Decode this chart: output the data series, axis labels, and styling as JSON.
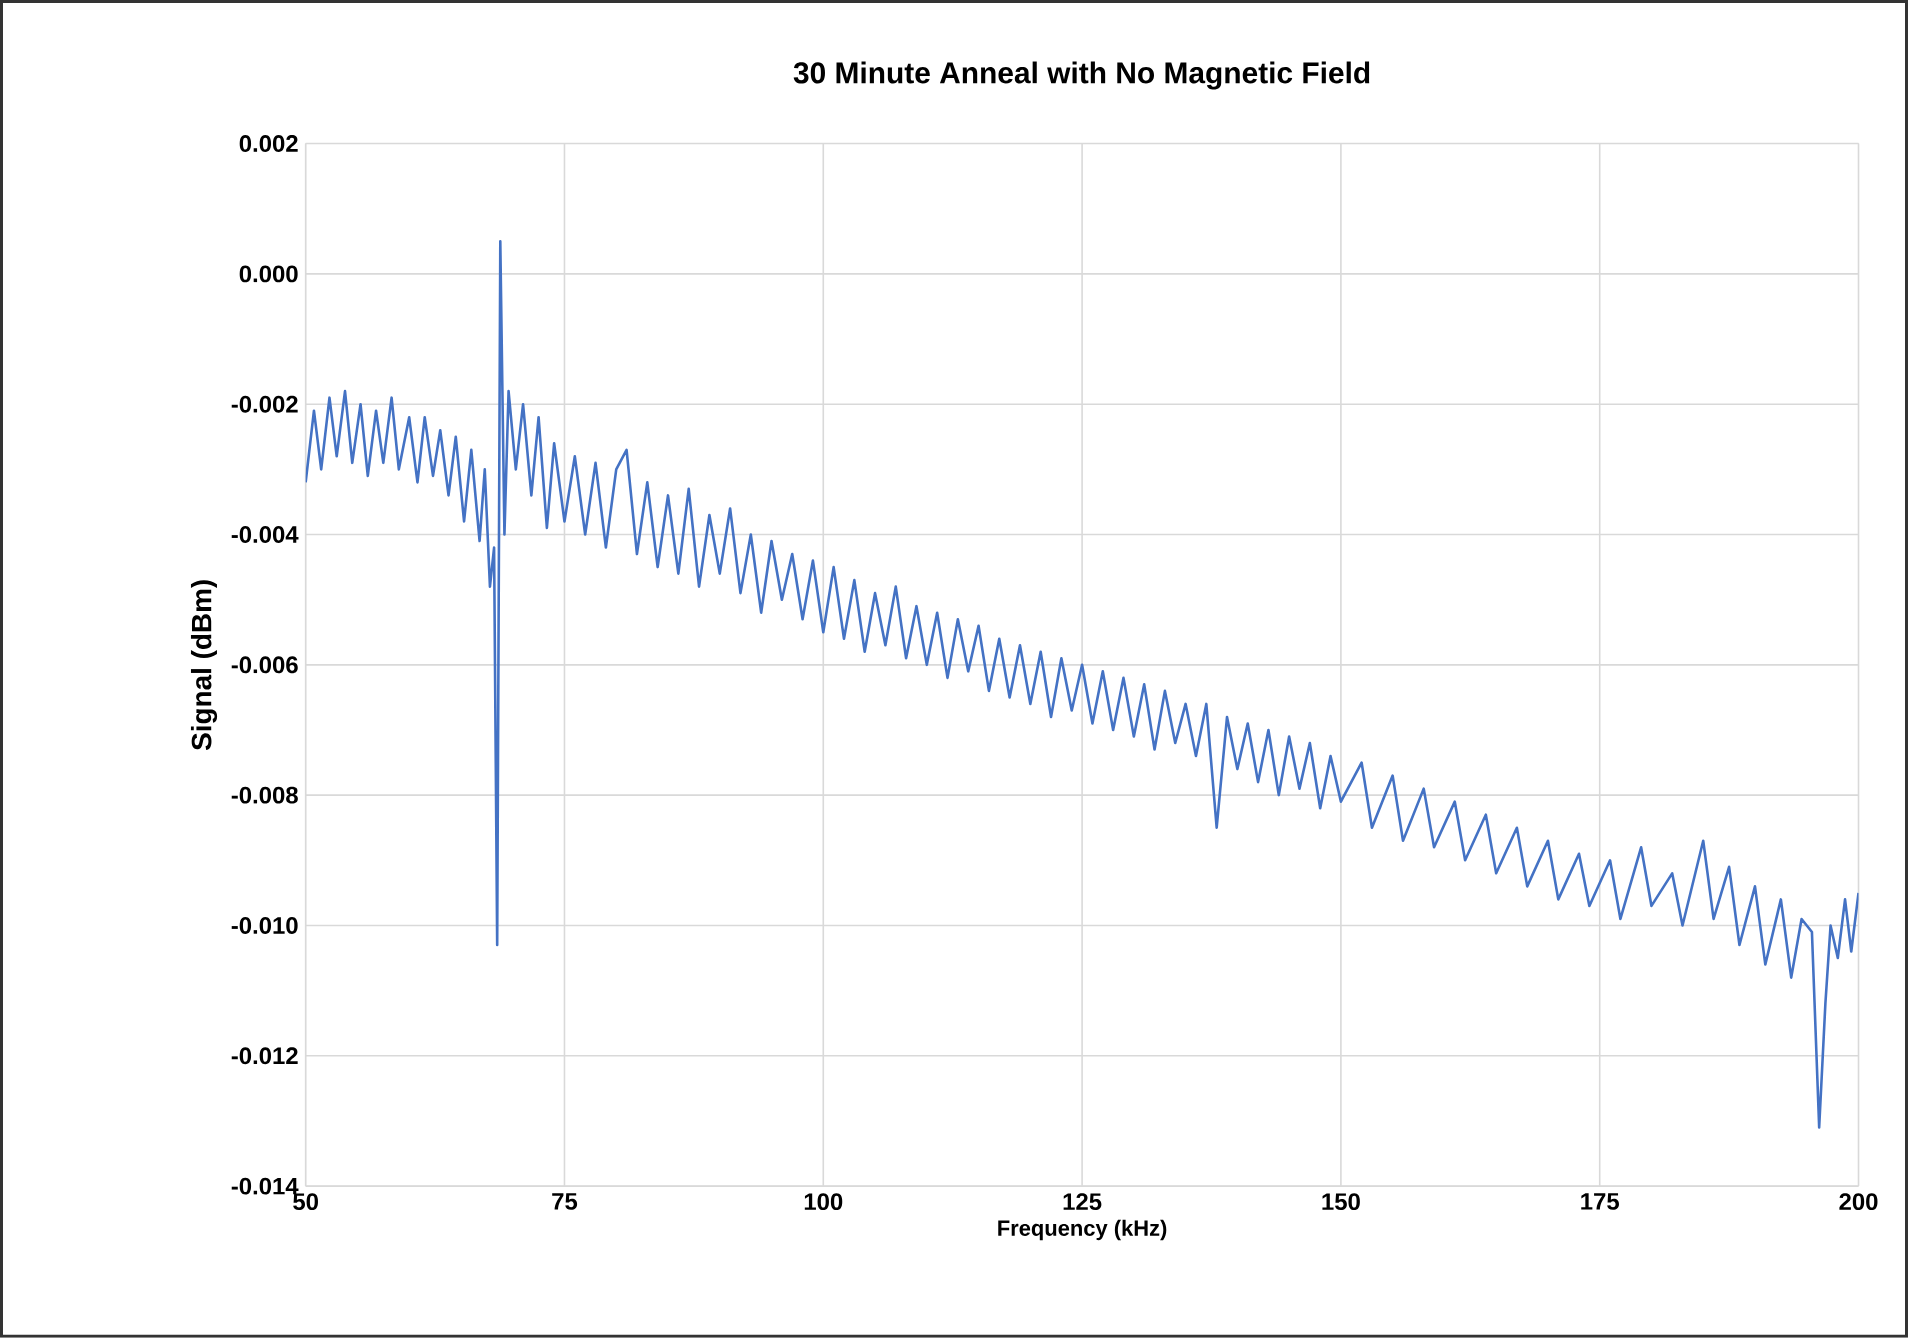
{
  "chart_data": {
    "type": "line",
    "title": "30 Minute Anneal with No Magnetic Field",
    "xlabel": "Frequency (kHz)",
    "ylabel": "Signal (dBm)",
    "xlim": [
      50,
      200
    ],
    "xticks": [
      50,
      75,
      100,
      125,
      150,
      175,
      200
    ],
    "ylim": [
      -0.014,
      0.002
    ],
    "yticks": [
      {
        "value": 0.002,
        "label": "0.002"
      },
      {
        "value": 0.0,
        "label": "0.000"
      },
      {
        "value": -0.002,
        "label": "-0.002"
      },
      {
        "value": -0.004,
        "label": "-0.004"
      },
      {
        "value": -0.006,
        "label": "-0.006"
      },
      {
        "value": -0.008,
        "label": "-0.008"
      },
      {
        "value": -0.01,
        "label": "-0.010"
      },
      {
        "value": -0.012,
        "label": "-0.012"
      },
      {
        "value": -0.014,
        "label": "-0.014"
      }
    ],
    "grid": true,
    "marker": "none",
    "line_style": "solid",
    "x": [
      50,
      50.8,
      51.5,
      52.3,
      53,
      53.8,
      54.5,
      55.3,
      56,
      56.8,
      57.5,
      58.3,
      59,
      60,
      60.8,
      61.5,
      62.3,
      63,
      63.8,
      64.5,
      65.3,
      66,
      66.8,
      67.3,
      67.8,
      68.2,
      68.5,
      68.8,
      69.2,
      69.6,
      70.3,
      71,
      71.8,
      72.5,
      73.3,
      74,
      75,
      76,
      77,
      78,
      79,
      80,
      81,
      82,
      83,
      84,
      85,
      86,
      87,
      88,
      89,
      90,
      91,
      92,
      93,
      94,
      95,
      96,
      97,
      98,
      99,
      100,
      101,
      102,
      103,
      104,
      105,
      106,
      107,
      108,
      109,
      110,
      111,
      112,
      113,
      114,
      115,
      116,
      117,
      118,
      119,
      120,
      121,
      122,
      123,
      124,
      125,
      126,
      127,
      128,
      129,
      130,
      131,
      132,
      133,
      134,
      135,
      136,
      137,
      138,
      139,
      140,
      141,
      142,
      143,
      144,
      145,
      146,
      147,
      148,
      149,
      150,
      152,
      153,
      155,
      156,
      158,
      159,
      161,
      162,
      164,
      165,
      167,
      168,
      170,
      171,
      173,
      174,
      176,
      177,
      179,
      180,
      182,
      183,
      185,
      186,
      187.5,
      188.5,
      190,
      191,
      192.5,
      193.5,
      194.5,
      195.5,
      196.2,
      196.8,
      197.3,
      198,
      198.7,
      199.3,
      200
    ],
    "series": [
      {
        "color": "#4472c4",
        "values": [
          -0.0032,
          -0.0021,
          -0.003,
          -0.0019,
          -0.0028,
          -0.0018,
          -0.0029,
          -0.002,
          -0.0031,
          -0.0021,
          -0.0029,
          -0.0019,
          -0.003,
          -0.0022,
          -0.0032,
          -0.0022,
          -0.0031,
          -0.0024,
          -0.0034,
          -0.0025,
          -0.0038,
          -0.0027,
          -0.0041,
          -0.003,
          -0.0048,
          -0.0042,
          -0.0103,
          0.0005,
          -0.004,
          -0.0018,
          -0.003,
          -0.002,
          -0.0034,
          -0.0022,
          -0.0039,
          -0.0026,
          -0.0038,
          -0.0028,
          -0.004,
          -0.0029,
          -0.0042,
          -0.003,
          -0.0027,
          -0.0043,
          -0.0032,
          -0.0045,
          -0.0034,
          -0.0046,
          -0.0033,
          -0.0048,
          -0.0037,
          -0.0046,
          -0.0036,
          -0.0049,
          -0.004,
          -0.0052,
          -0.0041,
          -0.005,
          -0.0043,
          -0.0053,
          -0.0044,
          -0.0055,
          -0.0045,
          -0.0056,
          -0.0047,
          -0.0058,
          -0.0049,
          -0.0057,
          -0.0048,
          -0.0059,
          -0.0051,
          -0.006,
          -0.0052,
          -0.0062,
          -0.0053,
          -0.0061,
          -0.0054,
          -0.0064,
          -0.0056,
          -0.0065,
          -0.0057,
          -0.0066,
          -0.0058,
          -0.0068,
          -0.0059,
          -0.0067,
          -0.006,
          -0.0069,
          -0.0061,
          -0.007,
          -0.0062,
          -0.0071,
          -0.0063,
          -0.0073,
          -0.0064,
          -0.0072,
          -0.0066,
          -0.0074,
          -0.0066,
          -0.0085,
          -0.0068,
          -0.0076,
          -0.0069,
          -0.0078,
          -0.007,
          -0.008,
          -0.0071,
          -0.0079,
          -0.0072,
          -0.0082,
          -0.0074,
          -0.0081,
          -0.0075,
          -0.0085,
          -0.0077,
          -0.0087,
          -0.0079,
          -0.0088,
          -0.0081,
          -0.009,
          -0.0083,
          -0.0092,
          -0.0085,
          -0.0094,
          -0.0087,
          -0.0096,
          -0.0089,
          -0.0097,
          -0.009,
          -0.0099,
          -0.0088,
          -0.0097,
          -0.0092,
          -0.01,
          -0.0087,
          -0.0099,
          -0.0091,
          -0.0103,
          -0.0094,
          -0.0106,
          -0.0096,
          -0.0108,
          -0.0099,
          -0.0101,
          -0.0131,
          -0.0112,
          -0.01,
          -0.0105,
          -0.0096,
          -0.0104,
          -0.0095
        ]
      }
    ]
  }
}
